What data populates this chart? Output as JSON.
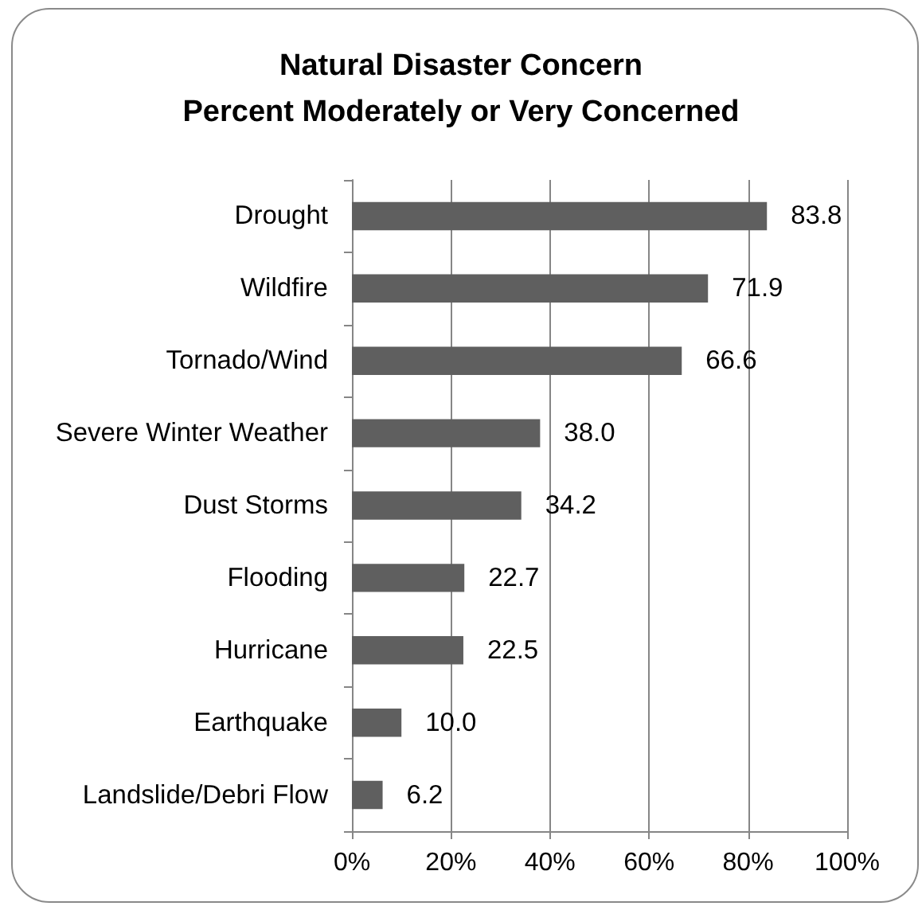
{
  "chart_data": {
    "type": "bar",
    "orientation": "horizontal",
    "title": "Natural Disaster Concern\nPercent Moderately or Very Concerned",
    "categories": [
      "Drought",
      "Wildfire",
      "Tornado/Wind",
      "Severe Winter Weather",
      "Dust Storms",
      "Flooding",
      "Hurricane",
      "Earthquake",
      "Landslide/Debri Flow"
    ],
    "values": [
      83.8,
      71.9,
      66.6,
      38.0,
      34.2,
      22.7,
      22.5,
      10.0,
      6.2
    ],
    "value_labels": [
      "83.8",
      "71.9",
      "66.6",
      "38.0",
      "34.2",
      "22.7",
      "22.5",
      "10.0",
      "6.2"
    ],
    "color": "#5f5f5f",
    "xlim": [
      0,
      100
    ],
    "xticks": [
      {
        "value": 0,
        "label": "0%"
      },
      {
        "value": 20,
        "label": "20%"
      },
      {
        "value": 40,
        "label": "40%"
      },
      {
        "value": 60,
        "label": "60%"
      },
      {
        "value": 80,
        "label": "80%"
      },
      {
        "value": 100,
        "label": "100%"
      }
    ],
    "grid": "x"
  }
}
